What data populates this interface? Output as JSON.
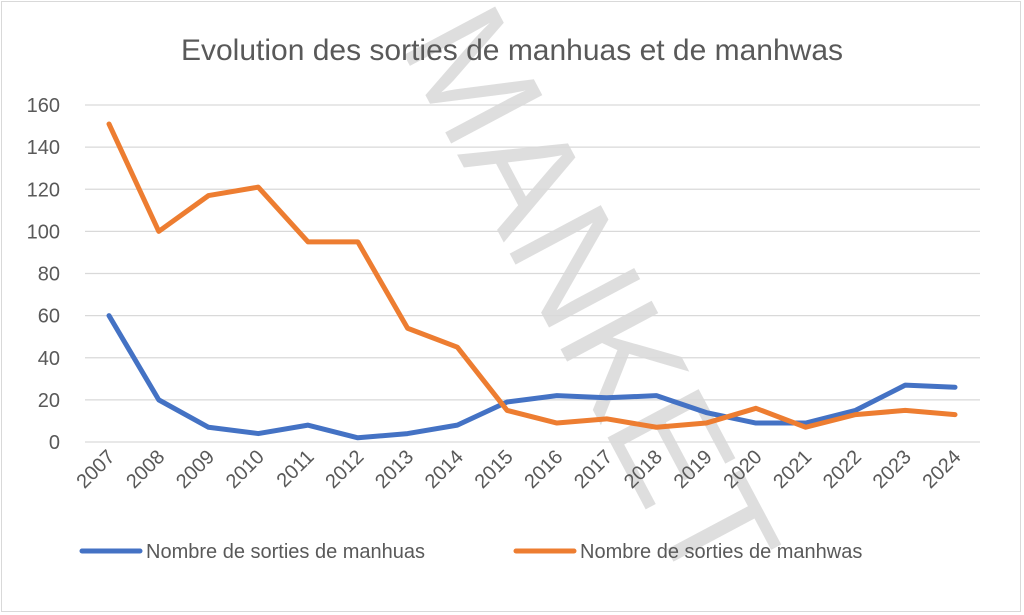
{
  "chart_data": {
    "type": "line",
    "title": "Evolution des sorties de manhuas et de manhwas",
    "watermark": "MANKET",
    "categories": [
      "2007",
      "2008",
      "2009",
      "2010",
      "2011",
      "2012",
      "2013",
      "2014",
      "2015",
      "2016",
      "2017",
      "2018",
      "2019",
      "2020",
      "2021",
      "2022",
      "2023",
      "2024"
    ],
    "series": [
      {
        "name": "Nombre de sorties de manhuas",
        "color": "#4472c4",
        "values": [
          60,
          20,
          7,
          4,
          8,
          2,
          4,
          8,
          19,
          22,
          21,
          22,
          14,
          9,
          9,
          15,
          27,
          26
        ]
      },
      {
        "name": "Nombre de sorties de manhwas",
        "color": "#ed7d31",
        "values": [
          151,
          100,
          117,
          121,
          95,
          95,
          54,
          45,
          15,
          9,
          11,
          7,
          9,
          16,
          7,
          13,
          15,
          13
        ]
      }
    ],
    "ylim": [
      0,
      160
    ],
    "yticks": [
      "0",
      "20",
      "40",
      "60",
      "80",
      "100",
      "120",
      "140",
      "160"
    ],
    "grid": true,
    "legend": "bottom"
  }
}
